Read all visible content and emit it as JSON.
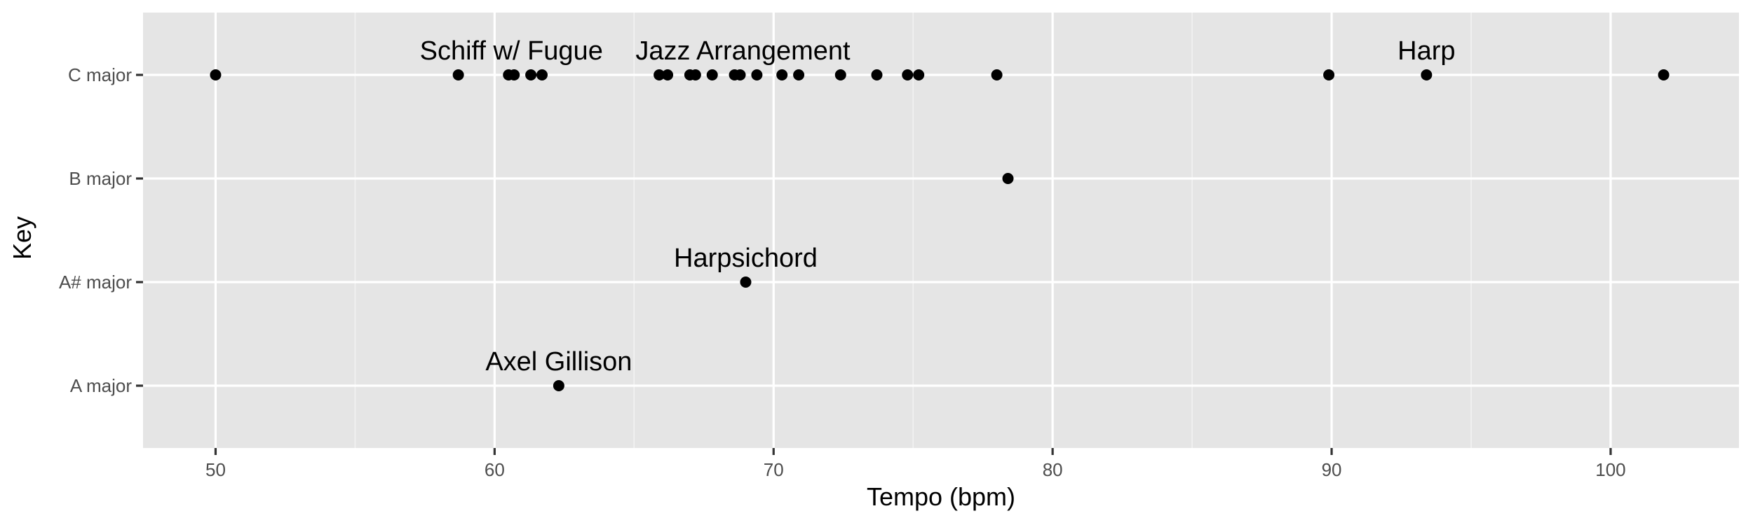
{
  "chart_data": {
    "type": "scatter",
    "title": "",
    "xlabel": "Tempo (bpm)",
    "ylabel": "Key",
    "xlim": [
      47.4,
      104.6
    ],
    "x_ticks": [
      50,
      60,
      70,
      80,
      90,
      100
    ],
    "x_tick_labels": [
      "50",
      "60",
      "70",
      "80",
      "90",
      "100"
    ],
    "categories": [
      "A major",
      "A# major",
      "B major",
      "C major"
    ],
    "grid": true,
    "legend": "none",
    "colors": {
      "panel": "#e5e5e5",
      "grid": "#ffffff",
      "point": "#000000"
    },
    "points": [
      {
        "x": 50.0,
        "y": "C major"
      },
      {
        "x": 58.7,
        "y": "C major"
      },
      {
        "x": 60.5,
        "y": "C major"
      },
      {
        "x": 60.7,
        "y": "C major"
      },
      {
        "x": 61.3,
        "y": "C major"
      },
      {
        "x": 61.7,
        "y": "C major"
      },
      {
        "x": 65.9,
        "y": "C major"
      },
      {
        "x": 66.2,
        "y": "C major"
      },
      {
        "x": 67.0,
        "y": "C major"
      },
      {
        "x": 67.2,
        "y": "C major"
      },
      {
        "x": 67.8,
        "y": "C major"
      },
      {
        "x": 68.6,
        "y": "C major"
      },
      {
        "x": 68.8,
        "y": "C major"
      },
      {
        "x": 69.4,
        "y": "C major"
      },
      {
        "x": 70.3,
        "y": "C major"
      },
      {
        "x": 70.9,
        "y": "C major"
      },
      {
        "x": 72.4,
        "y": "C major"
      },
      {
        "x": 73.7,
        "y": "C major"
      },
      {
        "x": 74.8,
        "y": "C major"
      },
      {
        "x": 75.2,
        "y": "C major"
      },
      {
        "x": 78.0,
        "y": "C major"
      },
      {
        "x": 89.9,
        "y": "C major"
      },
      {
        "x": 93.4,
        "y": "C major"
      },
      {
        "x": 101.9,
        "y": "C major"
      },
      {
        "x": 78.4,
        "y": "B major"
      },
      {
        "x": 69.0,
        "y": "A# major"
      },
      {
        "x": 62.3,
        "y": "A major"
      }
    ],
    "annotations": [
      {
        "text": "Schiff w/ Fugue",
        "x": 60.6,
        "y": "C major"
      },
      {
        "text": "Jazz Arrangement",
        "x": 68.9,
        "y": "C major"
      },
      {
        "text": "Harp",
        "x": 93.4,
        "y": "C major"
      },
      {
        "text": "Harpsichord",
        "x": 69.0,
        "y": "A# major"
      },
      {
        "text": "Axel Gillison",
        "x": 62.3,
        "y": "A major"
      }
    ]
  }
}
